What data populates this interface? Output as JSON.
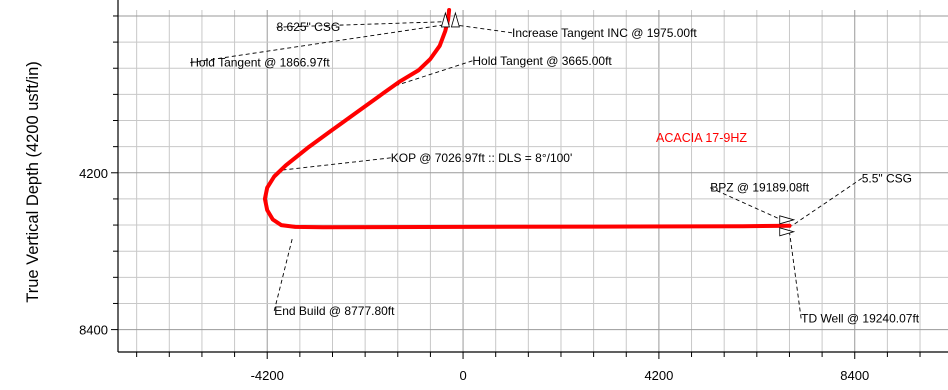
{
  "chart_data": {
    "type": "line",
    "title": "",
    "ylabel": "True Vertical Depth (4200 usft/in)",
    "xlabel": "",
    "xlim": [
      -7400,
      10400
    ],
    "ylim": [
      -160,
      9000
    ],
    "x_ticks": [
      -4200,
      0,
      4200,
      8400
    ],
    "y_ticks": [
      4200,
      8400
    ],
    "x_tick_labels": [
      "-4200",
      "0",
      "4200",
      "8400"
    ],
    "y_tick_labels": [
      "4200",
      "8400"
    ],
    "grid": true,
    "well_name": "ACACIA 17-9HZ",
    "colors": {
      "well_path": "#ff0000",
      "well_name": "#ff0000",
      "grid": "#c8c8c8"
    },
    "series": [
      {
        "x": [
          -300,
          -320,
          -380,
          -500,
          -700,
          -950,
          -1350,
          -1800,
          -2300,
          -2800,
          -3300,
          -3800,
          -4050,
          -4200,
          -4250,
          -4200,
          -4080,
          -3900,
          -3600,
          -3000,
          0,
          3000,
          6000,
          7000
        ],
        "y": [
          -160,
          100,
          400,
          800,
          1150,
          1450,
          1750,
          2150,
          2600,
          3050,
          3500,
          4000,
          4300,
          4600,
          4900,
          5200,
          5450,
          5600,
          5650,
          5660,
          5650,
          5640,
          5630,
          5620
        ]
      }
    ],
    "annotations": [
      {
        "label": "8.625\" CSG",
        "text_x": -4000,
        "text_y": 300,
        "point_x": -300,
        "point_y": 150
      },
      {
        "label": "Increase Tangent INC @ 1975.00ft",
        "text_x": 1050,
        "text_y": 450,
        "point_x": -400,
        "point_y": 200
      },
      {
        "label": "Hold Tangent @ 1866.97ft",
        "text_x": -5850,
        "text_y": 1250,
        "point_x": -360,
        "point_y": 230
      },
      {
        "label": "Hold Tangent @ 3665.00ft",
        "text_x": 200,
        "text_y": 1200,
        "point_x": -1480,
        "point_y": 1880
      },
      {
        "label": "KOP @ 7026.97ft :: DLS = 8°/100'",
        "text_x": -1550,
        "text_y": 3800,
        "point_x": -3900,
        "point_y": 4130
      },
      {
        "label": "5.5\" CSG",
        "text_x": 8550,
        "text_y": 4350,
        "point_x": 7050,
        "point_y": 5620
      },
      {
        "label": "BPZ @ 19189.08ft",
        "text_x": 5300,
        "text_y": 4600,
        "point_x": 6900,
        "point_y": 5500
      },
      {
        "label": "End Build @ 8777.80ft",
        "text_x": -4050,
        "text_y": 7900,
        "point_x": -3650,
        "point_y": 5900
      },
      {
        "label": "TD Well @ 19240.07ft",
        "text_x": 7250,
        "text_y": 8100,
        "point_x": 7000,
        "point_y": 5780
      }
    ],
    "markers": [
      {
        "name": "casing-marker-top",
        "x": -250,
        "y": 80
      },
      {
        "name": "casing-marker-td",
        "x": 6920,
        "y": 5620
      }
    ]
  }
}
